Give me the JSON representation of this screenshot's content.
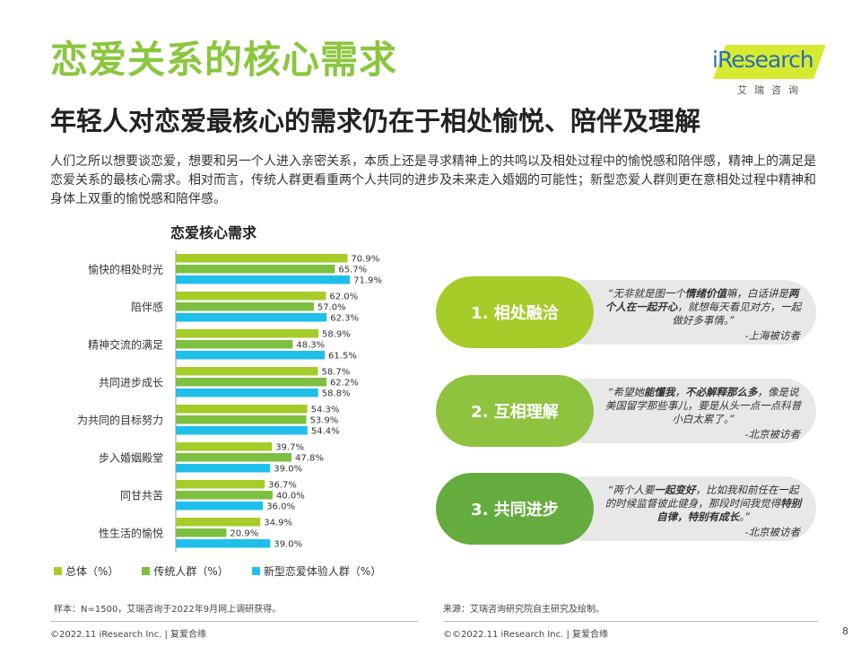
{
  "header": {
    "title": "恋爱关系的核心需求",
    "subtitle": "年轻人对恋爱最核心的需求仍在于相处愉悦、陪伴及理解",
    "intro": "人们之所以想要谈恋爱，想要和另一个人进入亲密关系，本质上还是寻求精神上的共鸣以及相处过程中的愉悦感和陪伴感，精神上的满足是恋爱关系的最核心需求。相对而言，传统人群更看重两个人共同的进步及未来走入婚姻的可能性；新型恋爱人群则更在意相处过程中精神和身体上双重的愉悦感和陪伴感。"
  },
  "logo": {
    "text": "iResearch",
    "sub": "艾瑞咨询"
  },
  "colors": {
    "accent": "#8bc63e",
    "series1": "#a5cc28",
    "series2": "#7dbf3f",
    "series3": "#1fbfea"
  },
  "chart_data": {
    "type": "bar",
    "orientation": "horizontal",
    "title": "恋爱核心需求",
    "categories": [
      "愉快的相处时光",
      "陪伴感",
      "精神交流的满足",
      "共同进步成长",
      "为共同的目标努力",
      "步入婚姻殿堂",
      "同甘共苦",
      "性生活的愉悦"
    ],
    "series": [
      {
        "name": "总体（%）",
        "values": [
          70.9,
          62.0,
          58.9,
          58.7,
          54.3,
          39.7,
          36.7,
          34.9
        ]
      },
      {
        "name": "传统人群（%）",
        "values": [
          65.7,
          57.0,
          48.3,
          62.2,
          53.9,
          47.8,
          40.0,
          20.9
        ]
      },
      {
        "name": "新型恋爱体验人群（%）",
        "values": [
          71.9,
          62.3,
          61.5,
          58.8,
          54.4,
          39.0,
          36.0,
          39.0
        ]
      }
    ],
    "labels": [
      [
        "70.9%",
        "65.7%",
        "71.9%"
      ],
      [
        "62.0%",
        "57.0%",
        "62.3%"
      ],
      [
        "58.9%",
        "48.3%",
        "61.5%"
      ],
      [
        "58.7%",
        "62.2%",
        "58.8%"
      ],
      [
        "54.3%",
        "53.9%",
        "54.4%"
      ],
      [
        "39.7%",
        "47.8%",
        "39.0%"
      ],
      [
        "36.7%",
        "40.0%",
        "36.0%"
      ],
      [
        "34.9%",
        "20.9%",
        "39.0%"
      ]
    ],
    "xlim": [
      0,
      100
    ]
  },
  "cards": [
    {
      "label": "1. 相处融洽",
      "quote": [
        "“无非就是图一个",
        "情绪价值",
        "嘛，白话讲是",
        "两个人在一起开心",
        "，就想每天看见对方，一起做好多事情。”"
      ],
      "source": "-上海被访者"
    },
    {
      "label": "2. 互相理解",
      "quote": [
        "“希望她",
        "能懂我",
        "，",
        "不必解释那么多",
        "，像是说美国留学那些事儿，要是从头一点一点科普小白太累了。”"
      ],
      "source": "-北京被访者"
    },
    {
      "label": "3. 共同进步",
      "quote": [
        "“两个人要",
        "一起变好",
        "，比如我和前任在一起的时候监督彼此健身，那段时间我觉得",
        "特别自律，特别有成长",
        "。”"
      ],
      "source": "-北京被访者"
    }
  ],
  "footer": {
    "sample_note": "样本：N=1500，艾瑞咨询于2022年9月网上调研获得。",
    "source_note": "来源：艾瑞咨询研究院自主研究及绘制。",
    "copyright_left": "©2022.11 iResearch Inc. | 复爱合缘",
    "copyright_right": "©©2022.11 iResearch Inc. | 复爱合缘",
    "page": "8"
  }
}
